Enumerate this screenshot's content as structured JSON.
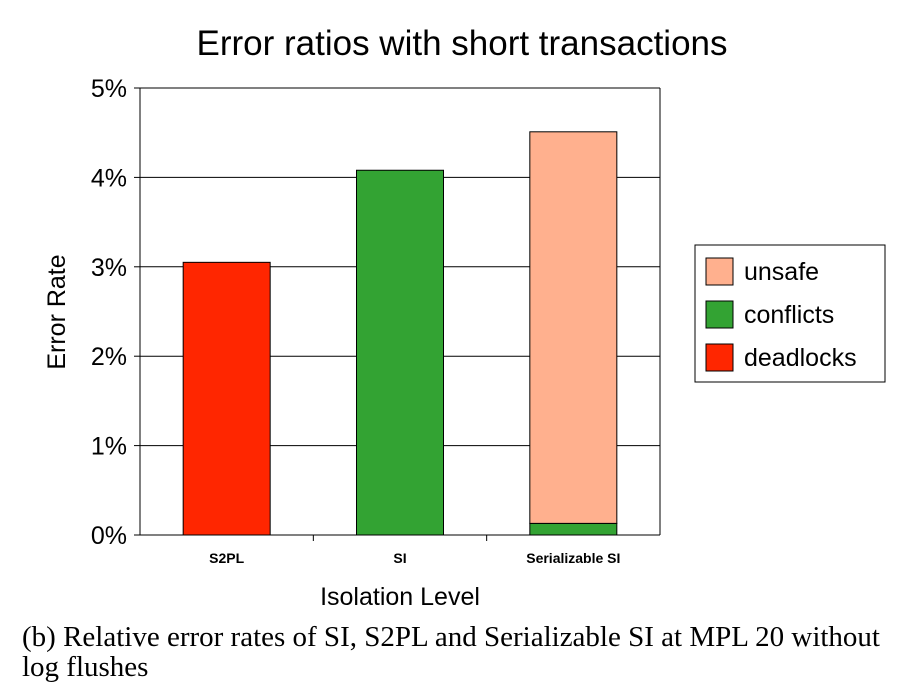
{
  "chart_data": {
    "type": "bar",
    "stacked": true,
    "title": "Error ratios with short transactions",
    "xlabel": "Isolation Level",
    "ylabel": "Error Rate",
    "categories": [
      "S2PL",
      "SI",
      "Serializable SI"
    ],
    "ylim": [
      0,
      5
    ],
    "yticks": [
      "0%",
      "1%",
      "2%",
      "3%",
      "4%",
      "5%"
    ],
    "grid": true,
    "legend_position": "right",
    "series": [
      {
        "name": "deadlocks",
        "color": "#ff2600",
        "values": [
          3.05,
          0,
          0
        ]
      },
      {
        "name": "conflicts",
        "color": "#33a333",
        "values": [
          0,
          4.08,
          0.13
        ]
      },
      {
        "name": "unsafe",
        "color": "#ffb08e",
        "values": [
          0,
          0,
          4.38
        ]
      }
    ],
    "legend_order": [
      "unsafe",
      "conflicts",
      "deadlocks"
    ]
  },
  "caption": "(b) Relative error rates of SI, S2PL and Serializable SI at MPL 20 without log flushes"
}
